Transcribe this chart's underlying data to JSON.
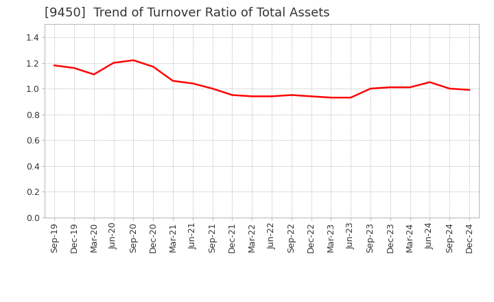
{
  "title": "[9450]  Trend of Turnover Ratio of Total Assets",
  "x_labels": [
    "Sep-19",
    "Dec-19",
    "Mar-20",
    "Jun-20",
    "Sep-20",
    "Dec-20",
    "Mar-21",
    "Jun-21",
    "Sep-21",
    "Dec-21",
    "Mar-22",
    "Jun-22",
    "Sep-22",
    "Dec-22",
    "Mar-23",
    "Jun-23",
    "Sep-23",
    "Dec-23",
    "Mar-24",
    "Jun-24",
    "Sep-24",
    "Dec-24"
  ],
  "y_values": [
    1.18,
    1.16,
    1.11,
    1.2,
    1.22,
    1.17,
    1.06,
    1.04,
    1.0,
    0.95,
    0.94,
    0.94,
    0.95,
    0.94,
    0.93,
    0.93,
    1.0,
    1.01,
    1.01,
    1.05,
    1.0,
    0.99
  ],
  "line_color": "#FF0000",
  "line_width": 1.8,
  "ylim": [
    0.0,
    1.5
  ],
  "yticks": [
    0.0,
    0.2,
    0.4,
    0.6,
    0.8,
    1.0,
    1.2,
    1.4
  ],
  "bg_color": "#FFFFFF",
  "plot_bg_color": "#FFFFFF",
  "grid_color": "#999999",
  "title_fontsize": 13,
  "tick_fontsize": 9,
  "title_color": "#333333"
}
